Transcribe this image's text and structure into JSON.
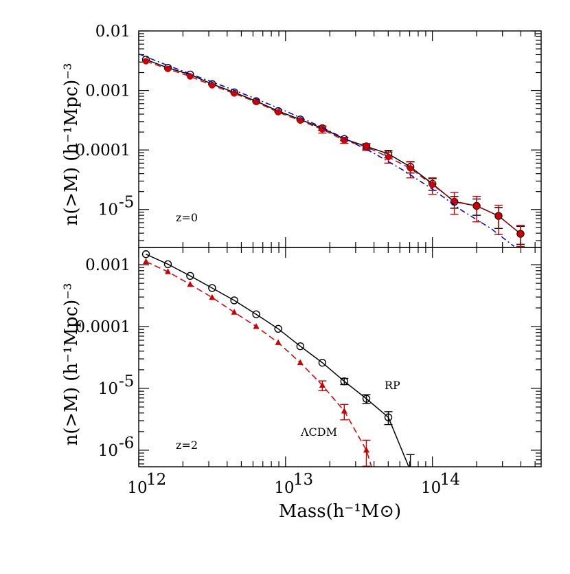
{
  "chart_data": [
    {
      "type": "line",
      "panel": "top",
      "xscale": "log",
      "yscale": "log",
      "xlim": [
        1000000000000.0,
        550000000000000.0
      ],
      "ylim": [
        2.3e-06,
        0.01
      ],
      "ylabel": "n(>M)  (h⁻¹Mpc)⁻³",
      "annotation": "z=0",
      "ytick_labels": [
        "0.01",
        "0.001",
        "0.0001",
        "10",
        "-5"
      ],
      "ytick_values": [
        0.01,
        0.001,
        0.0001,
        1e-05
      ],
      "series": [
        {
          "color": "#000000",
          "style": "solid",
          "marker": "open-circle",
          "points": [
            [
              1120000000000.0,
              0.0033
            ],
            [
              1580000000000.0,
              0.0024
            ],
            [
              2240000000000.0,
              0.00185
            ],
            [
              3160000000000.0,
              0.00128
            ],
            [
              4470000000000.0,
              0.00093
            ],
            [
              6310000000000.0,
              0.00066
            ],
            [
              8910000000000.0,
              0.00045
            ],
            [
              12600000000000.0,
              0.000325
            ],
            [
              17800000000000.0,
              0.000232
            ],
            [
              25100000000000.0,
              0.000153
            ],
            [
              35500000000000.0,
              0.000115
            ],
            [
              50100000000000.0,
              8.6e-05
            ],
            [
              70800000000000.0,
              5.2e-05
            ],
            [
              100000000000000.0,
              2.7e-05
            ],
            [
              141000000000000.0,
              1.35e-05
            ],
            [
              200000000000000.0,
              1.15e-05
            ],
            [
              282000000000000.0,
              7.8e-06
            ],
            [
              398000000000000.0,
              3.9e-06
            ]
          ],
          "yerr": [
            0,
            0,
            0,
            0,
            0,
            0,
            0,
            0,
            2e-05,
            1e-05,
            1.2e-05,
            1.2e-05,
            1.1e-05,
            6e-06,
            3e-06,
            3.5e-06,
            3e-06,
            1.3e-06
          ]
        },
        {
          "color": "#cc0000",
          "style": "dashed",
          "marker": "filled-circle",
          "points": [
            [
              1120000000000.0,
              0.0031
            ],
            [
              1580000000000.0,
              0.0023
            ],
            [
              2240000000000.0,
              0.00172
            ],
            [
              3160000000000.0,
              0.00122
            ],
            [
              4470000000000.0,
              0.00089
            ],
            [
              6310000000000.0,
              0.00064
            ],
            [
              8910000000000.0,
              0.00043
            ],
            [
              12600000000000.0,
              0.000312
            ],
            [
              17800000000000.0,
              0.000222
            ],
            [
              25100000000000.0,
              0.000145
            ],
            [
              35500000000000.0,
              0.000113
            ],
            [
              50100000000000.0,
              7.6e-05
            ],
            [
              70800000000000.0,
              4.9e-05
            ],
            [
              100000000000000.0,
              2.6e-05
            ],
            [
              141000000000000.0,
              1.38e-05
            ],
            [
              200000000000000.0,
              1.14e-05
            ],
            [
              282000000000000.0,
              7.8e-06
            ],
            [
              398000000000000.0,
              3.9e-06
            ]
          ],
          "yerr": [
            0,
            0,
            0,
            0,
            0,
            0,
            0,
            0,
            3e-05,
            1.6e-05,
            1.5e-05,
            1.6e-05,
            1.5e-05,
            8e-06,
            5.5e-06,
            5.2e-06,
            4e-06,
            1.5e-06
          ]
        },
        {
          "color": "#0000cc",
          "style": "dash-dot",
          "marker": "none",
          "points": [
            [
              1000000000000.0,
              0.0041
            ],
            [
              1600000000000.0,
              0.0026
            ],
            [
              2500000000000.0,
              0.00172
            ],
            [
              4000000000000.0,
              0.00112
            ],
            [
              6300000000000.0,
              0.000725
            ],
            [
              10000000000000.0,
              0.00045
            ],
            [
              16000000000000.0,
              0.00027
            ],
            [
              25000000000000.0,
              0.000158
            ],
            [
              40000000000000.0,
              8.8e-05
            ],
            [
              63000000000000.0,
              4.6e-05
            ],
            [
              100000000000000.0,
              2.2e-05
            ],
            [
              160000000000000.0,
              9.5e-06
            ],
            [
              250000000000000.0,
              4.8e-06
            ],
            [
              360000000000000.0,
              2.4e-06
            ]
          ]
        }
      ]
    },
    {
      "type": "line",
      "panel": "bottom",
      "xscale": "log",
      "yscale": "log",
      "xlim": [
        1000000000000.0,
        550000000000000.0
      ],
      "ylim": [
        5.4e-07,
        0.0019
      ],
      "xlabel": "Mass(h⁻¹M⊙)",
      "ylabel": "n(>M)  (h⁻¹Mpc)⁻³",
      "annotation": "z=2",
      "xtick_labels": [
        "10",
        "12",
        "10",
        "13",
        "10",
        "14"
      ],
      "ytick_labels": [
        "0.001",
        "0.0001",
        "10",
        "-5",
        "10",
        "-6"
      ],
      "ytick_values": [
        0.001,
        0.0001,
        1e-05,
        1e-06
      ],
      "series": [
        {
          "name": "RP",
          "color": "#000000",
          "style": "solid",
          "marker": "open-circle",
          "points": [
            [
              1120000000000.0,
              0.00148
            ],
            [
              1580000000000.0,
              0.00102
            ],
            [
              2240000000000.0,
              0.00066
            ],
            [
              3160000000000.0,
              0.00042
            ],
            [
              4470000000000.0,
              0.000265
            ],
            [
              6310000000000.0,
              0.000158
            ],
            [
              8910000000000.0,
              9.2e-05
            ],
            [
              12600000000000.0,
              4.8e-05
            ],
            [
              17800000000000.0,
              2.6e-05
            ],
            [
              25100000000000.0,
              1.3e-05
            ],
            [
              35500000000000.0,
              6.8e-06
            ],
            [
              50100000000000.0,
              3.4e-06
            ]
          ],
          "yerr": [
            0,
            0,
            0,
            0,
            0,
            0,
            0,
            0,
            0,
            1.5e-06,
            1.1e-06,
            8e-07
          ],
          "extension": [
            [
              50100000000000.0,
              3.4e-06
            ],
            [
              69000000000000.0,
              5.4e-07
            ]
          ],
          "extra_errbar": [
            70800000000000.0,
            8.5e-07
          ]
        },
        {
          "name": "ΛCDM",
          "color": "#cc0000",
          "style": "dashed",
          "marker": "filled-triangle",
          "points": [
            [
              1120000000000.0,
              0.00112
            ],
            [
              1580000000000.0,
              0.00077
            ],
            [
              2240000000000.0,
              0.00048
            ],
            [
              3160000000000.0,
              0.000295
            ],
            [
              4470000000000.0,
              0.00017
            ],
            [
              6310000000000.0,
              0.0001
            ],
            [
              8910000000000.0,
              5.5e-05
            ],
            [
              12600000000000.0,
              2.6e-05
            ],
            [
              17800000000000.0,
              1.12e-05
            ],
            [
              25100000000000.0,
              4.3e-06
            ],
            [
              35500000000000.0,
              1e-06
            ]
          ],
          "yerr": [
            0,
            0,
            0,
            0,
            0,
            0,
            0,
            0,
            2e-06,
            1.2e-06,
            4.5e-07
          ],
          "extension": [
            [
              35500000000000.0,
              1e-06
            ],
            [
              38500000000000.0,
              5.4e-07
            ]
          ]
        }
      ]
    }
  ]
}
